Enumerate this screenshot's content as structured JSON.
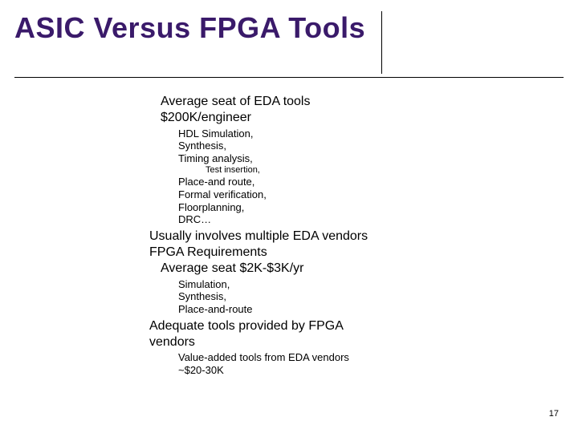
{
  "title": "ASIC Versus FPGA Tools",
  "page_number": "17",
  "asic": {
    "avg_line1": "Average seat of EDA tools",
    "avg_line2": "$200K/engineer",
    "items": {
      "hdl": "HDL Simulation,",
      "synth": "Synthesis,",
      "timing": "Timing analysis,",
      "test_insertion": "Test insertion,",
      "pr": "Place-and route,",
      "fv": "Formal verification,",
      "floor": "Floorplanning,",
      "drc": "DRC…"
    },
    "multi_vendor": "Usually involves multiple EDA vendors"
  },
  "fpga": {
    "heading": "FPGA Requirements",
    "avg": "Average seat $2K-$3K/yr",
    "items": {
      "sim": "Simulation,",
      "synth": "Synthesis,",
      "pr": "Place-and-route"
    },
    "adequate_line1": "Adequate tools provided by FPGA",
    "adequate_line2": "vendors",
    "value_add_line1": "Value-added tools from EDA vendors",
    "value_add_line2": "~$20-30K"
  }
}
